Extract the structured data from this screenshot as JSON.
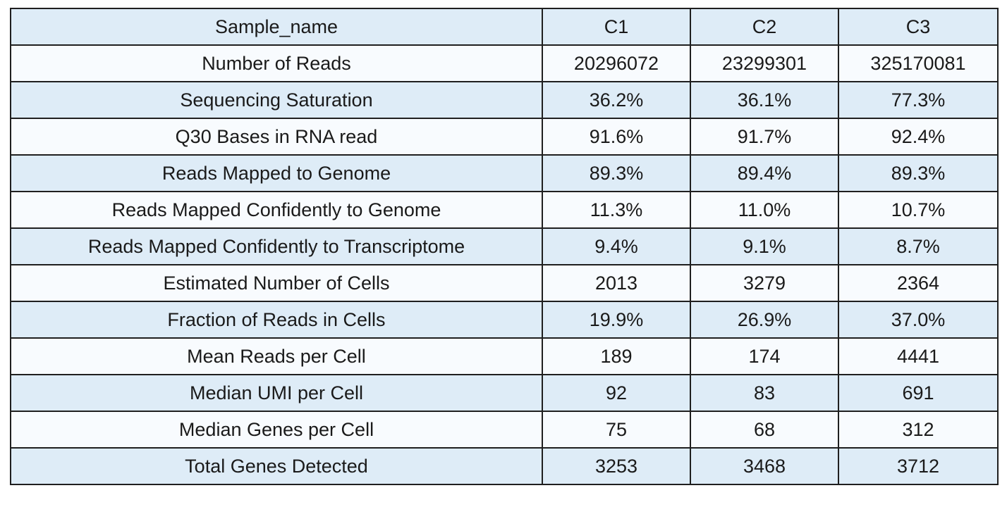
{
  "table": {
    "headers": [
      "Sample_name",
      "C1",
      "C2",
      "C3"
    ],
    "rows": [
      [
        "Number of Reads",
        "20296072",
        "23299301",
        "325170081"
      ],
      [
        "Sequencing Saturation",
        "36.2%",
        "36.1%",
        "77.3%"
      ],
      [
        "Q30 Bases in RNA read",
        "91.6%",
        "91.7%",
        "92.4%"
      ],
      [
        "Reads Mapped to Genome",
        "89.3%",
        "89.4%",
        "89.3%"
      ],
      [
        "Reads Mapped Confidently to Genome",
        "11.3%",
        "11.0%",
        "10.7%"
      ],
      [
        "Reads Mapped Confidently to Transcriptome",
        "9.4%",
        "9.1%",
        "8.7%"
      ],
      [
        "Estimated Number of Cells",
        "2013",
        "3279",
        "2364"
      ],
      [
        "Fraction of Reads in Cells",
        "19.9%",
        "26.9%",
        "37.0%"
      ],
      [
        "Mean Reads per Cell",
        "189",
        "174",
        "4441"
      ],
      [
        "Median UMI per Cell",
        "92",
        "83",
        "691"
      ],
      [
        "Median Genes per Cell",
        "75",
        "68",
        "312"
      ],
      [
        "Total Genes Detected",
        "3253",
        "3468",
        "3712"
      ]
    ]
  },
  "colors": {
    "shaded_row": "#deecf7",
    "plain_row": "#f8fbfe",
    "border": "#1f1f1f",
    "text": "#1a1a1a"
  }
}
